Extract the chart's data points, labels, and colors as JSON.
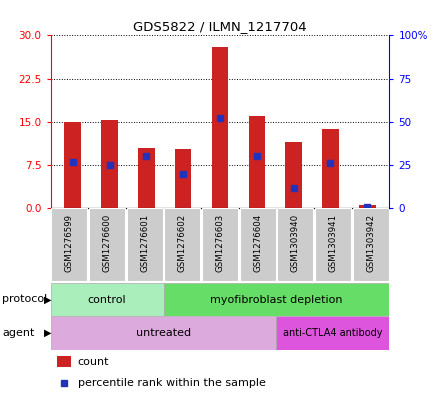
{
  "title": "GDS5822 / ILMN_1217704",
  "samples": [
    "GSM1276599",
    "GSM1276600",
    "GSM1276601",
    "GSM1276602",
    "GSM1276603",
    "GSM1276604",
    "GSM1303940",
    "GSM1303941",
    "GSM1303942"
  ],
  "counts": [
    14.9,
    15.3,
    10.5,
    10.2,
    28.0,
    16.0,
    11.5,
    13.7,
    0.5
  ],
  "percentile_ranks": [
    27,
    25,
    30,
    20,
    52,
    30,
    12,
    26,
    1
  ],
  "left_ylim": [
    0,
    30
  ],
  "right_ylim": [
    0,
    100
  ],
  "left_yticks": [
    0,
    7.5,
    15,
    22.5,
    30
  ],
  "right_yticks": [
    0,
    25,
    50,
    75,
    100
  ],
  "right_yticklabels": [
    "0",
    "25",
    "50",
    "75",
    "100%"
  ],
  "bar_color": "#cc2222",
  "blue_color": "#2233bb",
  "bar_width": 0.45,
  "control_color": "#aaeebb",
  "myofib_color": "#66dd66",
  "untreated_color": "#ddaadd",
  "anti_color": "#dd55dd",
  "sample_bg_color": "#cccccc",
  "protocol_control_label": "control",
  "protocol_myofib_label": "myofibroblast depletion",
  "agent_untreated_label": "untreated",
  "agent_anti_label": "anti-CTLA4 antibody",
  "legend_count_label": "count",
  "legend_pct_label": "percentile rank within the sample",
  "n_control": 3,
  "n_untreated": 6
}
